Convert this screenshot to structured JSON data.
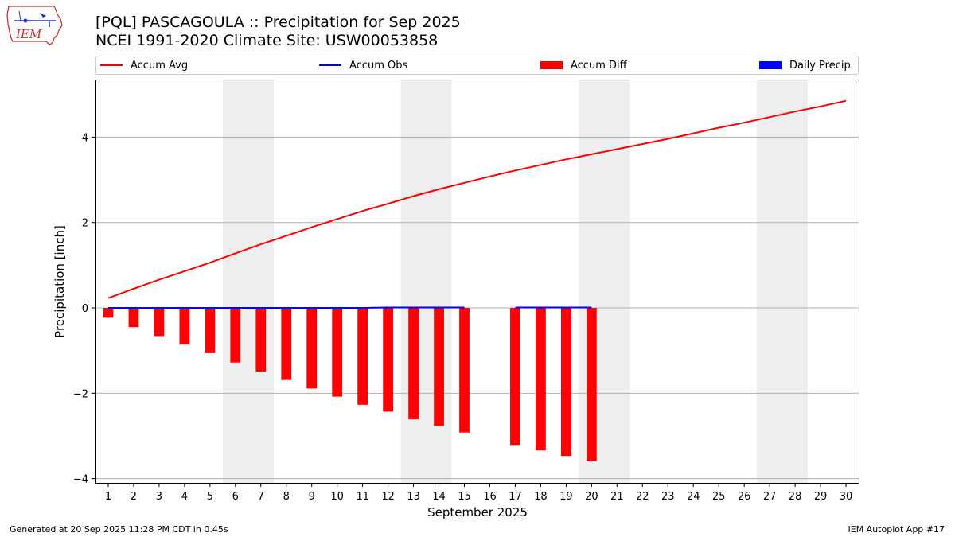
{
  "header": {
    "title_line1": "[PQL] PASCAGOULA :: Precipitation for Sep 2025",
    "title_line2": "NCEI 1991-2020 Climate Site: USW00053858"
  },
  "logo": {
    "text": "IEM"
  },
  "legend": {
    "accum_avg": "Accum Avg",
    "accum_obs": "Accum Obs",
    "accum_diff": "Accum Diff",
    "daily_precip": "Daily Precip"
  },
  "colors": {
    "accum_avg": "#ff0000",
    "accum_obs": "#0000ff",
    "accum_diff": "#ff0000",
    "daily_precip": "#0000ff",
    "weekend_shade": "#eeeeee",
    "grid": "#b0b0b0"
  },
  "footer": {
    "left": "Generated at 20 Sep 2025 11:28 PM CDT in 0.45s",
    "right": "IEM Autoplot App #17"
  },
  "chart_data": {
    "type": "bar",
    "xlabel": "September 2025",
    "ylabel": "Precipitation [inch]",
    "xlim": [
      0.5,
      30.5
    ],
    "ylim": [
      -4.1,
      5.35
    ],
    "yticks": [
      -4,
      -2,
      0,
      2,
      4
    ],
    "ytick_labels": [
      "−4",
      "−2",
      "0",
      "2",
      "4"
    ],
    "x": [
      1,
      2,
      3,
      4,
      5,
      6,
      7,
      8,
      9,
      10,
      11,
      12,
      13,
      14,
      15,
      16,
      17,
      18,
      19,
      20,
      21,
      22,
      23,
      24,
      25,
      26,
      27,
      28,
      29,
      30
    ],
    "grid": "horizontal",
    "legend_position": "top",
    "weekend_shaded_ranges": [
      [
        5.5,
        7.5
      ],
      [
        12.5,
        14.5
      ],
      [
        19.5,
        21.5
      ],
      [
        26.5,
        28.5
      ]
    ],
    "series": [
      {
        "name": "Accum Avg",
        "type": "line",
        "x": [
          1,
          2,
          3,
          4,
          5,
          6,
          7,
          8,
          9,
          10,
          11,
          12,
          13,
          14,
          15,
          16,
          17,
          18,
          19,
          20,
          21,
          22,
          23,
          24,
          25,
          26,
          27,
          28,
          29,
          30
        ],
        "values": [
          0.23,
          0.45,
          0.66,
          0.86,
          1.06,
          1.28,
          1.49,
          1.69,
          1.89,
          2.08,
          2.27,
          2.44,
          2.62,
          2.78,
          2.93,
          3.08,
          3.22,
          3.35,
          3.48,
          3.6,
          3.72,
          3.84,
          3.96,
          4.09,
          4.22,
          4.34,
          4.47,
          4.6,
          4.72,
          4.85
        ]
      },
      {
        "name": "Accum Obs",
        "type": "line",
        "segments": [
          {
            "x": [
              1,
              2,
              3,
              4,
              5,
              6,
              7,
              8,
              9,
              10,
              11,
              12,
              13,
              14,
              15
            ],
            "values": [
              0,
              0,
              0,
              0,
              0,
              0,
              0,
              0,
              0,
              0,
              0,
              0.01,
              0.01,
              0.01,
              0.01
            ]
          },
          {
            "x": [
              17,
              18,
              19,
              20
            ],
            "values": [
              0.01,
              0.01,
              0.01,
              0.01
            ]
          }
        ]
      },
      {
        "name": "Accum Diff",
        "type": "bar",
        "x": [
          1,
          2,
          3,
          4,
          5,
          6,
          7,
          8,
          9,
          10,
          11,
          12,
          13,
          14,
          15,
          17,
          18,
          19,
          20
        ],
        "values": [
          -0.23,
          -0.45,
          -0.66,
          -0.86,
          -1.06,
          -1.28,
          -1.49,
          -1.69,
          -1.89,
          -2.08,
          -2.27,
          -2.43,
          -2.61,
          -2.77,
          -2.92,
          -3.21,
          -3.34,
          -3.47,
          -3.59
        ]
      },
      {
        "name": "Daily Precip",
        "type": "bar",
        "x": [
          12
        ],
        "values": [
          0.01
        ]
      }
    ]
  }
}
